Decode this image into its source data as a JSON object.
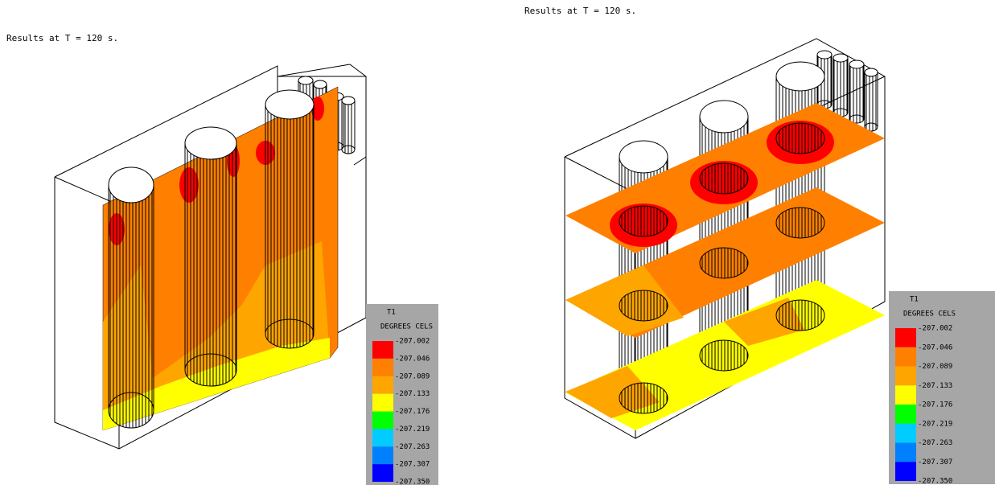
{
  "panels": [
    {
      "title": "Results at T = 120 s.",
      "legend": {
        "title": "T1",
        "unit": "DEGREES CELS",
        "labels": [
          "-207.002",
          "-207.046",
          "-207.089",
          "-207.133",
          "-207.176",
          "-207.219",
          "-207.263",
          "-207.307",
          "-207.350"
        ],
        "colors": [
          "#ff0000",
          "#ff8000",
          "#ffa500",
          "#ffff00",
          "#00ff00",
          "#00ccff",
          "#0080ff",
          "#0000ff"
        ]
      }
    },
    {
      "title": "Results at T = 120 s.",
      "legend": {
        "title": "T1",
        "unit": "DEGREES CELS",
        "labels": [
          "-207.002",
          "-207.046",
          "-207.089",
          "-207.133",
          "-207.176",
          "-207.219",
          "-207.263",
          "-207.307",
          "-207.350"
        ],
        "colors": [
          "#ff0000",
          "#ff8000",
          "#ffa500",
          "#ffff00",
          "#00ff00",
          "#00ccff",
          "#0080ff",
          "#0000ff"
        ]
      }
    }
  ]
}
